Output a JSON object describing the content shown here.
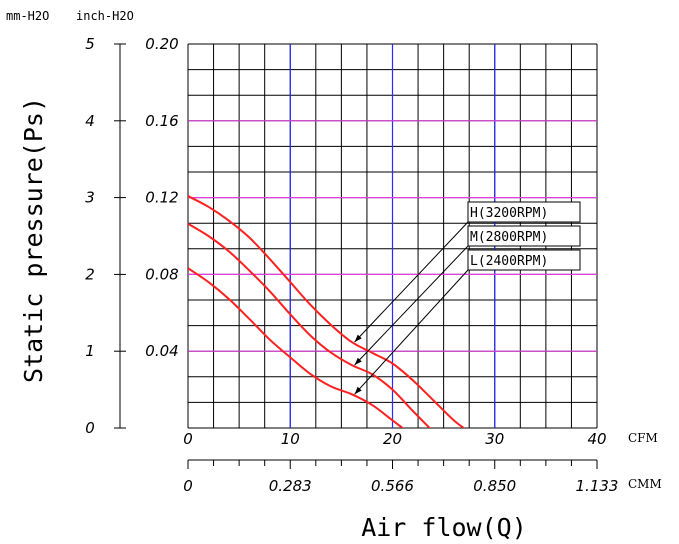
{
  "chart_data": {
    "type": "line",
    "xlabel": "Air flow(Q)",
    "ylabel": "Static pressure(Ps)",
    "x_unit": "CFM",
    "x2_unit": "CMM",
    "y_unit": "mm-H2O",
    "y2_unit": "inch-H2O",
    "xlim": [
      0,
      40
    ],
    "ylim": [
      0,
      5
    ],
    "y2lim": [
      0,
      0.2
    ],
    "x_ticks": [
      "0",
      "10",
      "20",
      "30",
      "40"
    ],
    "x2_ticks": [
      "0",
      "0.283",
      "0.566",
      "0.850",
      "1.133"
    ],
    "y_ticks": [
      "0",
      "1",
      "2",
      "3",
      "4",
      "5"
    ],
    "y2_ticks": [
      "0.04",
      "0.08",
      "0.12",
      "0.16",
      "0.20"
    ],
    "grid": true,
    "series": [
      {
        "name": "H(3200RPM)",
        "color": "#ff2020",
        "x": [
          0,
          2,
          4,
          6,
          8,
          10,
          12,
          14,
          16,
          18,
          20,
          22,
          24,
          26,
          27.5
        ],
        "y": [
          3.02,
          2.88,
          2.7,
          2.48,
          2.2,
          1.9,
          1.6,
          1.34,
          1.12,
          0.98,
          0.84,
          0.62,
          0.36,
          0.1,
          -0.05
        ]
      },
      {
        "name": "M(2800RPM)",
        "color": "#ff2020",
        "x": [
          0,
          2,
          4,
          6,
          8,
          10,
          12,
          14,
          16,
          18,
          20,
          22,
          24
        ],
        "y": [
          2.66,
          2.5,
          2.3,
          2.05,
          1.78,
          1.48,
          1.2,
          0.98,
          0.82,
          0.7,
          0.5,
          0.22,
          -0.05
        ]
      },
      {
        "name": "L(2400RPM)",
        "color": "#ff2020",
        "x": [
          0,
          2,
          4,
          6,
          8,
          10,
          12,
          14,
          16,
          18,
          20,
          22,
          23.5
        ],
        "y": [
          2.08,
          1.9,
          1.68,
          1.42,
          1.15,
          0.92,
          0.7,
          0.54,
          0.44,
          0.3,
          0.1,
          -0.1,
          -0.2
        ]
      }
    ],
    "annotations": [
      "H(3200RPM)",
      "M(2800RPM)",
      "L(2400RPM)"
    ]
  }
}
